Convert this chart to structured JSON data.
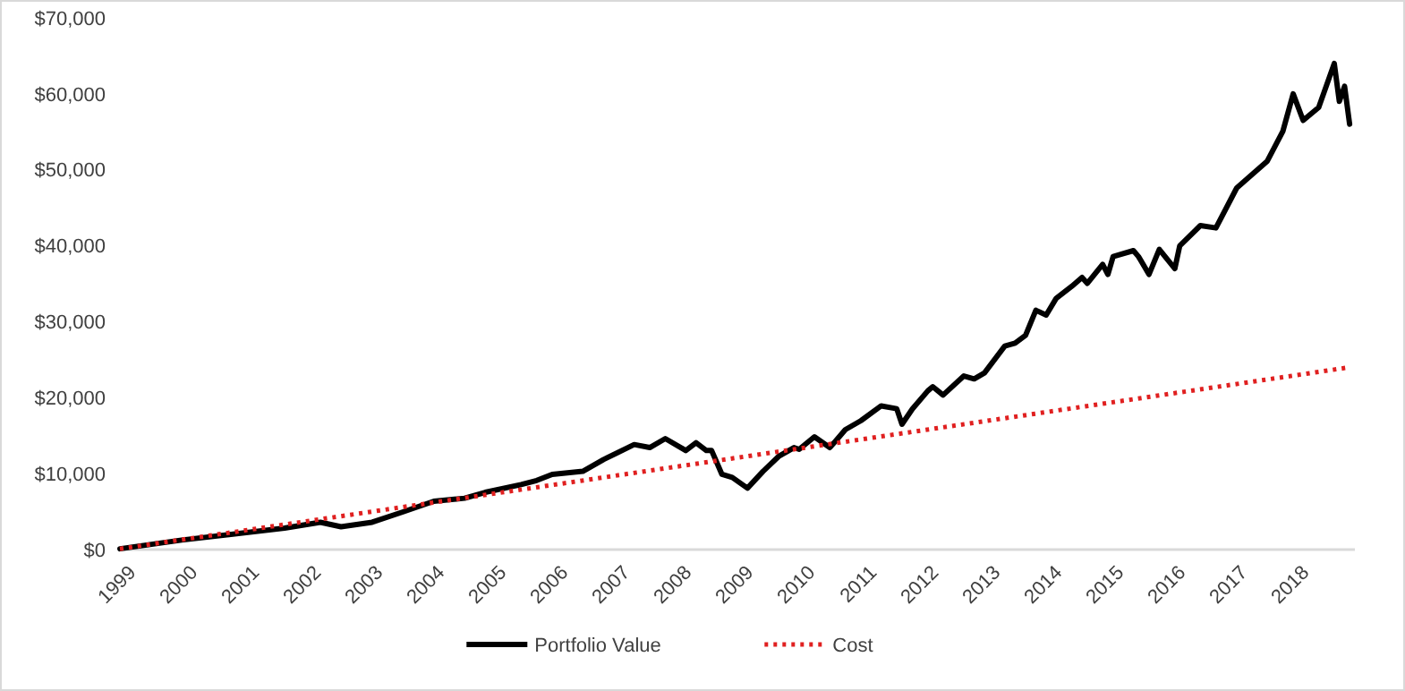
{
  "chart_data": {
    "type": "line",
    "xlim": [
      "1999-01",
      "2019-01"
    ],
    "xticks": [
      "1999",
      "2000",
      "2001",
      "2002",
      "2003",
      "2004",
      "2005",
      "2006",
      "2007",
      "2008",
      "2009",
      "2010",
      "2011",
      "2012",
      "2013",
      "2014",
      "2015",
      "2016",
      "2017",
      "2018"
    ],
    "ylim": [
      0,
      70000
    ],
    "yticks": [
      {
        "value": 0,
        "label": "$0"
      },
      {
        "value": 10000,
        "label": "$10,000"
      },
      {
        "value": 20000,
        "label": "$20,000"
      },
      {
        "value": 30000,
        "label": "$30,000"
      },
      {
        "value": 40000,
        "label": "$40,000"
      },
      {
        "value": 50000,
        "label": "$50,000"
      },
      {
        "value": 60000,
        "label": "$60,000"
      },
      {
        "value": 70000,
        "label": "$70,000"
      }
    ],
    "grid": false,
    "legend": "bottom",
    "marker": "none",
    "series": [
      {
        "name": "Portfolio Value",
        "color": "#000000",
        "line_style": "solid",
        "x": [
          "1999-01",
          "2000-01",
          "2001-09",
          "2002-04",
          "2002-08",
          "2003-02",
          "2003-08",
          "2004-02",
          "2004-08",
          "2004-12",
          "2005-07",
          "2005-10",
          "2006-01",
          "2006-07",
          "2006-11",
          "2007-05",
          "2007-08",
          "2007-11",
          "2008-03",
          "2008-05",
          "2008-07",
          "2008-08",
          "2008-10",
          "2008-12",
          "2009-03",
          "2009-06",
          "2009-09",
          "2009-12",
          "2010-01",
          "2010-04",
          "2010-07",
          "2010-08",
          "2010-10",
          "2011-01",
          "2011-05",
          "2011-08",
          "2011-09",
          "2011-11",
          "2012-02",
          "2012-03",
          "2012-05",
          "2012-09",
          "2012-11",
          "2013-01",
          "2013-05",
          "2013-07",
          "2013-09",
          "2013-11",
          "2014-01",
          "2014-03",
          "2014-06",
          "2014-08",
          "2014-09",
          "2014-12",
          "2015-01",
          "2015-02",
          "2015-06",
          "2015-07",
          "2015-09",
          "2015-11",
          "2016-02",
          "2016-03",
          "2016-07",
          "2016-10",
          "2017-02",
          "2017-08",
          "2017-11",
          "2018-01",
          "2018-03",
          "2018-06",
          "2018-09",
          "2018-10",
          "2018-11",
          "2018-12"
        ],
        "values": [
          100,
          1250,
          2830,
          3600,
          3000,
          3600,
          4950,
          6360,
          6760,
          7540,
          8560,
          9100,
          9900,
          10300,
          11860,
          13830,
          13430,
          14610,
          13040,
          14060,
          13040,
          13040,
          9900,
          9500,
          8090,
          10300,
          12260,
          13430,
          13200,
          14850,
          13430,
          14210,
          15790,
          16970,
          18920,
          18550,
          16500,
          18500,
          20900,
          21450,
          20340,
          22860,
          22470,
          23260,
          26800,
          27180,
          28210,
          31510,
          30880,
          33070,
          34650,
          35830,
          35050,
          37550,
          36230,
          38580,
          39360,
          38580,
          36230,
          39520,
          37000,
          40000,
          42660,
          42350,
          47610,
          51150,
          55080,
          60000,
          56500,
          58220,
          64000,
          59000,
          61000,
          56000
        ]
      },
      {
        "name": "Cost",
        "color": "#e02020",
        "line_style": "dotted",
        "x": [
          "1999-01",
          "2000-01",
          "2001-01",
          "2002-01",
          "2003-01",
          "2004-01",
          "2005-01",
          "2006-01",
          "2007-01",
          "2008-01",
          "2009-01",
          "2010-01",
          "2011-01",
          "2012-01",
          "2013-01",
          "2014-01",
          "2015-01",
          "2016-01",
          "2017-01",
          "2018-01",
          "2018-12"
        ],
        "values": [
          100,
          1300,
          2500,
          3700,
          4900,
          6100,
          7300,
          8500,
          9700,
          10900,
          12100,
          13300,
          14500,
          15700,
          16900,
          18100,
          19300,
          20500,
          21700,
          22900,
          24000
        ]
      }
    ]
  }
}
